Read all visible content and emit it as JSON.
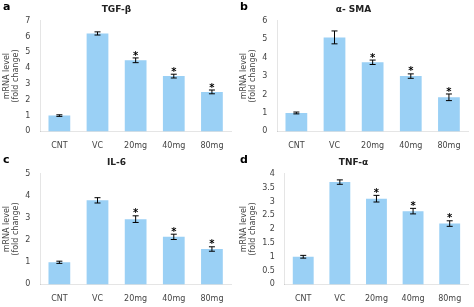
{
  "chart_data": [
    {
      "type": "bar",
      "panel_label": "a",
      "title": "TGF-β",
      "ylabel": "mRNA level\n(fold change)",
      "categories": [
        "CNT",
        "VC",
        "20mg",
        "40mg",
        "80mg"
      ],
      "values": [
        1.0,
        6.2,
        4.5,
        3.5,
        2.5
      ],
      "errors": [
        0.05,
        0.1,
        0.15,
        0.12,
        0.12
      ],
      "annotations": [
        {
          "category": "20mg",
          "text": "*"
        },
        {
          "category": "40mg",
          "text": "*"
        },
        {
          "category": "80mg",
          "text": "*"
        }
      ],
      "ylim": [
        0,
        7
      ],
      "yticks": [
        0,
        1,
        2,
        3,
        4,
        5,
        6,
        7
      ],
      "grid": false
    },
    {
      "type": "bar",
      "panel_label": "b",
      "title": "α- SMA",
      "ylabel": "mRNA level\n(fold change)",
      "categories": [
        "CNT",
        "VC",
        "20mg",
        "40mg",
        "80mg"
      ],
      "values": [
        1.0,
        5.1,
        3.75,
        3.0,
        1.85
      ],
      "errors": [
        0.05,
        0.35,
        0.12,
        0.12,
        0.18
      ],
      "annotations": [
        {
          "category": "20mg",
          "text": "*"
        },
        {
          "category": "40mg",
          "text": "*"
        },
        {
          "category": "80mg",
          "text": "*"
        }
      ],
      "ylim": [
        0,
        6
      ],
      "yticks": [
        0,
        1,
        2,
        3,
        4,
        5,
        6
      ],
      "grid": false
    },
    {
      "type": "bar",
      "panel_label": "c",
      "title": "IL-6",
      "ylabel": "mRNA level\n(fold change)",
      "categories": [
        "CNT",
        "VC",
        "20mg",
        "40mg",
        "80mg"
      ],
      "values": [
        1.0,
        3.8,
        2.95,
        2.15,
        1.6
      ],
      "errors": [
        0.05,
        0.12,
        0.15,
        0.12,
        0.1
      ],
      "annotations": [
        {
          "category": "20mg",
          "text": "*"
        },
        {
          "category": "40mg",
          "text": "*"
        },
        {
          "category": "80mg",
          "text": "*"
        }
      ],
      "ylim": [
        0,
        5
      ],
      "yticks": [
        0,
        1,
        2,
        3,
        4,
        5
      ],
      "grid": false
    },
    {
      "type": "bar",
      "panel_label": "d",
      "title": "TNF-α",
      "ylabel": "mRNA level\n(fold change)",
      "categories": [
        "CNT",
        "VC",
        "20mg",
        "40mg",
        "80mg"
      ],
      "values": [
        1.0,
        3.7,
        3.1,
        2.65,
        2.2
      ],
      "errors": [
        0.05,
        0.08,
        0.12,
        0.1,
        0.1
      ],
      "annotations": [
        {
          "category": "20mg",
          "text": "*"
        },
        {
          "category": "40mg",
          "text": "*"
        },
        {
          "category": "80mg",
          "text": "*"
        }
      ],
      "ylim": [
        0,
        4
      ],
      "yticks": [
        0,
        0.5,
        1,
        1.5,
        2,
        2.5,
        3,
        3.5,
        4
      ],
      "grid": false
    }
  ]
}
